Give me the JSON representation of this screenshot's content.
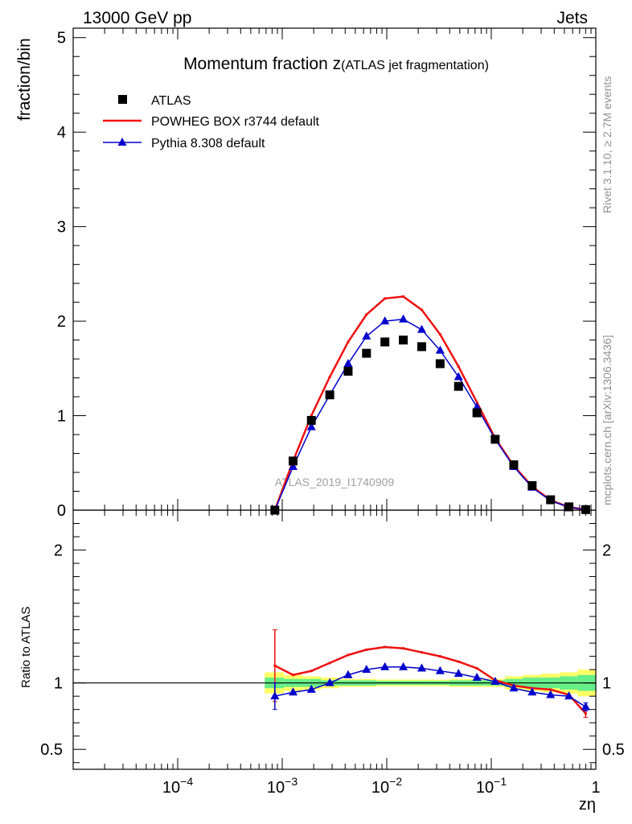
{
  "header": {
    "left": "13000 GeV pp",
    "right": "Jets"
  },
  "side_labels": {
    "rivet": "Rivet 3.1.10, ≥ 2.7M events",
    "mcplots": "mcplots.cern.ch [arXiv:1306.3436]"
  },
  "watermark": "ATLAS_2019_I1740909",
  "chart_data": {
    "type": "line",
    "title": "Momentum fraction z",
    "title_suffix": "(ATLAS jet fragmentation)",
    "xlabel": "zη",
    "ylabel": "fraction/bin",
    "ratio_ylabel": "Ratio to ATLAS",
    "xscale": "log",
    "xlim": [
      1e-05,
      1
    ],
    "ylim": [
      0,
      5.1
    ],
    "ratio_ylim": [
      0.35,
      2.3
    ],
    "x_tick_labels": [
      {
        "value": 0.0001,
        "base": "10",
        "exp": "−4"
      },
      {
        "value": 0.001,
        "base": "10",
        "exp": "−3"
      },
      {
        "value": 0.01,
        "base": "10",
        "exp": "−2"
      },
      {
        "value": 0.1,
        "base": "10",
        "exp": "−1"
      },
      {
        "value": 1,
        "base": "1",
        "exp": ""
      }
    ],
    "y_ticks": [
      {
        "value": 0,
        "label": "0"
      },
      {
        "value": 1,
        "label": "1"
      },
      {
        "value": 2,
        "label": "2"
      },
      {
        "value": 3,
        "label": "3"
      },
      {
        "value": 4,
        "label": "4"
      },
      {
        "value": 5,
        "label": "5"
      }
    ],
    "ratio_ticks": [
      {
        "value": 0.5,
        "label": "0.5"
      },
      {
        "value": 1,
        "label": "1"
      },
      {
        "value": 2,
        "label": "2"
      }
    ],
    "legend_position": "top-left",
    "x": [
      0.00085,
      0.00127,
      0.0019,
      0.00285,
      0.00427,
      0.0064,
      0.0096,
      0.0144,
      0.0216,
      0.0324,
      0.0486,
      0.0729,
      0.109,
      0.164,
      0.246,
      0.369,
      0.553,
      0.8
    ],
    "series": [
      {
        "name": "ATLAS",
        "style": "data",
        "color": "#000000",
        "values": [
          0.0,
          0.52,
          0.95,
          1.22,
          1.47,
          1.66,
          1.78,
          1.8,
          1.73,
          1.55,
          1.31,
          1.03,
          0.75,
          0.48,
          0.26,
          0.11,
          0.035,
          0.006
        ]
      },
      {
        "name": "POWHEG BOX r3744 default",
        "style": "line",
        "color": "#ee1111",
        "values": [
          0.0,
          0.52,
          1.0,
          1.41,
          1.78,
          2.07,
          2.24,
          2.26,
          2.12,
          1.86,
          1.52,
          1.14,
          0.76,
          0.47,
          0.25,
          0.105,
          0.033,
          0.005
        ],
        "ratio": [
          1.13,
          1.06,
          1.09,
          1.15,
          1.21,
          1.25,
          1.27,
          1.26,
          1.23,
          1.2,
          1.16,
          1.11,
          1.02,
          0.98,
          0.96,
          0.95,
          0.91,
          0.77
        ],
        "ratio_err": [
          0.27,
          0,
          0,
          0,
          0,
          0,
          0,
          0,
          0,
          0,
          0,
          0,
          0,
          0,
          0,
          0,
          0,
          0.03
        ]
      },
      {
        "name": "Pythia 8.308 default",
        "style": "triangle",
        "color": "#0000cc",
        "values": [
          0.0,
          0.46,
          0.88,
          1.22,
          1.55,
          1.84,
          2.0,
          2.02,
          1.91,
          1.69,
          1.41,
          1.09,
          0.75,
          0.46,
          0.24,
          0.1,
          0.032,
          0.005
        ],
        "ratio": [
          0.9,
          0.93,
          0.95,
          1.0,
          1.06,
          1.1,
          1.12,
          1.12,
          1.11,
          1.09,
          1.07,
          1.04,
          1.01,
          0.96,
          0.93,
          0.91,
          0.9,
          0.82
        ],
        "ratio_err": [
          0.1,
          0,
          0,
          0,
          0,
          0,
          0,
          0,
          0,
          0,
          0,
          0,
          0,
          0,
          0,
          0,
          0,
          0.03
        ]
      }
    ],
    "uncertainty_bands": {
      "x_edges": [
        0.00068,
        0.00104,
        0.00156,
        0.00234,
        0.00351,
        0.00527,
        0.0079,
        0.0119,
        0.0178,
        0.0267,
        0.04,
        0.06,
        0.09,
        0.135,
        0.2,
        0.3,
        0.45,
        0.67,
        1.0
      ],
      "inner": {
        "color": "#66ee88",
        "lo": [
          0.96,
          0.97,
          0.97,
          0.98,
          0.98,
          0.98,
          0.985,
          0.985,
          0.985,
          0.985,
          0.98,
          0.98,
          0.98,
          0.97,
          0.96,
          0.96,
          0.95,
          0.94
        ],
        "hi": [
          1.04,
          1.03,
          1.03,
          1.02,
          1.02,
          1.02,
          1.015,
          1.015,
          1.015,
          1.015,
          1.02,
          1.02,
          1.02,
          1.03,
          1.04,
          1.04,
          1.05,
          1.06
        ]
      },
      "outer": {
        "color": "#ffff66",
        "lo": [
          0.92,
          0.94,
          0.95,
          0.96,
          0.97,
          0.97,
          0.975,
          0.975,
          0.975,
          0.975,
          0.97,
          0.97,
          0.97,
          0.95,
          0.94,
          0.93,
          0.92,
          0.9
        ],
        "hi": [
          1.08,
          1.06,
          1.05,
          1.04,
          1.03,
          1.03,
          1.025,
          1.025,
          1.025,
          1.025,
          1.03,
          1.03,
          1.03,
          1.05,
          1.06,
          1.07,
          1.08,
          1.1
        ]
      }
    }
  }
}
